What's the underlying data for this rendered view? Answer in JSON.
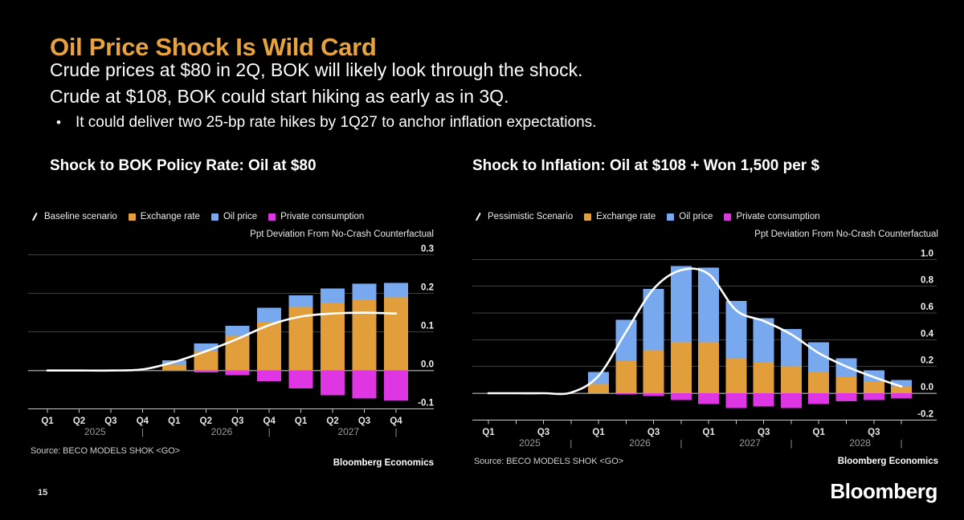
{
  "page": {
    "title": "Oil Price Shock Is Wild Card",
    "subtitle_line1": "Crude prices at $80 in 2Q, BOK will likely look through the shock.",
    "subtitle_line2": "Crude at $108, BOK could start hiking as early as in 3Q.",
    "bullet_marker": "•",
    "bullet": "It could deliver two 25-bp rate hikes by 1Q27 to anchor inflation expectations.",
    "page_number": "15",
    "logo_text": "Bloomberg"
  },
  "colors": {
    "title_orange": "#E8A33D",
    "exchange_rate_orange": "#E39E3C",
    "oil_price_blue": "#78A9EE",
    "private_consumption_magenta": "#DF36E4",
    "scenario_line_white": "#FFFFFF",
    "grid_gray": "#3F3F3F",
    "zero_line_gray": "#8F8F8F",
    "axis_line_gray": "#C8C8C8",
    "tick_text": "#F2F2F2",
    "year_text": "#9B9B9B"
  },
  "chart_data": [
    {
      "type": "bar",
      "subtype": "stacked-bar-with-line",
      "title": "Shock to BOK Policy Rate: Oil at $80",
      "axis_label": "Ppt Deviation From No-Crash Counterfactual",
      "source": "Source: BECO MODELS SHOK <GO>",
      "branding": "Bloomberg Economics",
      "legend": [
        {
          "label": "Baseline scenario",
          "marker": "line",
          "color": "#FFFFFF"
        },
        {
          "label": "Exchange rate",
          "marker": "square",
          "color": "#E39E3C"
        },
        {
          "label": "Oil price",
          "marker": "square",
          "color": "#78A9EE"
        },
        {
          "label": "Private consumption",
          "marker": "square",
          "color": "#DF36E4"
        }
      ],
      "x": [
        "2025Q1",
        "2025Q2",
        "2025Q3",
        "2025Q4",
        "2026Q1",
        "2026Q2",
        "2026Q3",
        "2026Q4",
        "2027Q1",
        "2027Q2",
        "2027Q3",
        "2027Q4"
      ],
      "x_labels": [
        "Q1",
        "Q2",
        "Q3",
        "Q4",
        "Q1",
        "Q2",
        "Q3",
        "Q4",
        "Q1",
        "Q2",
        "Q3",
        "Q4"
      ],
      "year_groups": [
        "2025",
        "2026",
        "2027"
      ],
      "year_separator": "|",
      "ylim": [
        -0.1,
        0.33
      ],
      "yticks": [
        0.3,
        0.2,
        0.1,
        0.0,
        -0.1
      ],
      "ytick_labels": [
        "0.3",
        "0.2",
        "0.1",
        "0.0",
        "-0.1"
      ],
      "grid": true,
      "legend_position": "top-left",
      "series": [
        {
          "name": "Exchange rate",
          "type": "bar",
          "color": "#E39E3C",
          "values": [
            0,
            0,
            0,
            0,
            0.015,
            0.05,
            0.09,
            0.125,
            0.165,
            0.175,
            0.185,
            0.19
          ]
        },
        {
          "name": "Oil price",
          "type": "bar",
          "color": "#78A9EE",
          "values": [
            0,
            0,
            0,
            0,
            0.011,
            0.02,
            0.026,
            0.038,
            0.03,
            0.038,
            0.04,
            0.037
          ]
        },
        {
          "name": "Private consumption",
          "type": "bar",
          "color": "#DF36E4",
          "values": [
            0,
            0,
            0,
            0,
            0,
            -0.005,
            -0.012,
            -0.028,
            -0.046,
            -0.064,
            -0.072,
            -0.078
          ]
        },
        {
          "name": "Baseline scenario",
          "type": "line",
          "color": "#FFFFFF",
          "values": [
            0,
            0,
            0,
            0.003,
            0.022,
            0.05,
            0.082,
            0.118,
            0.14,
            0.148,
            0.15,
            0.148
          ]
        }
      ]
    },
    {
      "type": "bar",
      "subtype": "stacked-bar-with-line",
      "title": "Shock to Inflation: Oil at $108 + Won 1,500 per $",
      "axis_label": "Ppt Deviation From No-Crash Counterfactual",
      "source": "Source: BECO MODELS SHOK <GO>",
      "branding": "Bloomberg Economics",
      "legend": [
        {
          "label": "Pessimistic Scenario",
          "marker": "line",
          "color": "#FFFFFF"
        },
        {
          "label": "Exchange rate",
          "marker": "square",
          "color": "#E39E3C"
        },
        {
          "label": "Oil price",
          "marker": "square",
          "color": "#78A9EE"
        },
        {
          "label": "Private consumption",
          "marker": "square",
          "color": "#DF36E4"
        }
      ],
      "x": [
        "2025Q1",
        "2025Q2",
        "2025Q3",
        "2025Q4",
        "2026Q1",
        "2026Q2",
        "2026Q3",
        "2026Q4",
        "2027Q1",
        "2027Q2",
        "2027Q3",
        "2027Q4",
        "2028Q1",
        "2028Q2",
        "2028Q3",
        "2028Q4"
      ],
      "x_labels": [
        "Q1",
        "",
        "Q3",
        "",
        "Q1",
        "",
        "Q3",
        "",
        "Q1",
        "",
        "Q3",
        "",
        "Q1",
        "",
        "Q3",
        ""
      ],
      "year_groups": [
        "2025",
        "2026",
        "2027",
        "2028"
      ],
      "year_separator": "|",
      "ylim": [
        -0.2,
        1.12
      ],
      "yticks": [
        1.0,
        0.8,
        0.6,
        0.4,
        0.2,
        0.0,
        -0.2
      ],
      "ytick_labels": [
        "1.0",
        "0.8",
        "0.6",
        "0.4",
        "0.2",
        "0.0",
        "-0.2"
      ],
      "grid": true,
      "legend_position": "top-left",
      "series": [
        {
          "name": "Exchange rate",
          "type": "bar",
          "color": "#E39E3C",
          "values": [
            0,
            0,
            0,
            0,
            0.07,
            0.24,
            0.32,
            0.38,
            0.38,
            0.26,
            0.23,
            0.2,
            0.16,
            0.12,
            0.09,
            0.05
          ]
        },
        {
          "name": "Oil price",
          "type": "bar",
          "color": "#78A9EE",
          "values": [
            0,
            0,
            0,
            0,
            0.09,
            0.31,
            0.46,
            0.57,
            0.56,
            0.43,
            0.33,
            0.28,
            0.22,
            0.14,
            0.08,
            0.05
          ]
        },
        {
          "name": "Private consumption",
          "type": "bar",
          "color": "#DF36E4",
          "values": [
            0,
            0,
            0,
            0,
            0,
            -0.01,
            -0.02,
            -0.05,
            -0.08,
            -0.11,
            -0.1,
            -0.11,
            -0.08,
            -0.06,
            -0.05,
            -0.04
          ]
        },
        {
          "name": "Pessimistic Scenario",
          "type": "line",
          "color": "#FFFFFF",
          "values": [
            0,
            0,
            0,
            0.005,
            0.13,
            0.46,
            0.78,
            0.92,
            0.89,
            0.62,
            0.54,
            0.44,
            0.3,
            0.2,
            0.12,
            0.05
          ]
        }
      ]
    }
  ]
}
